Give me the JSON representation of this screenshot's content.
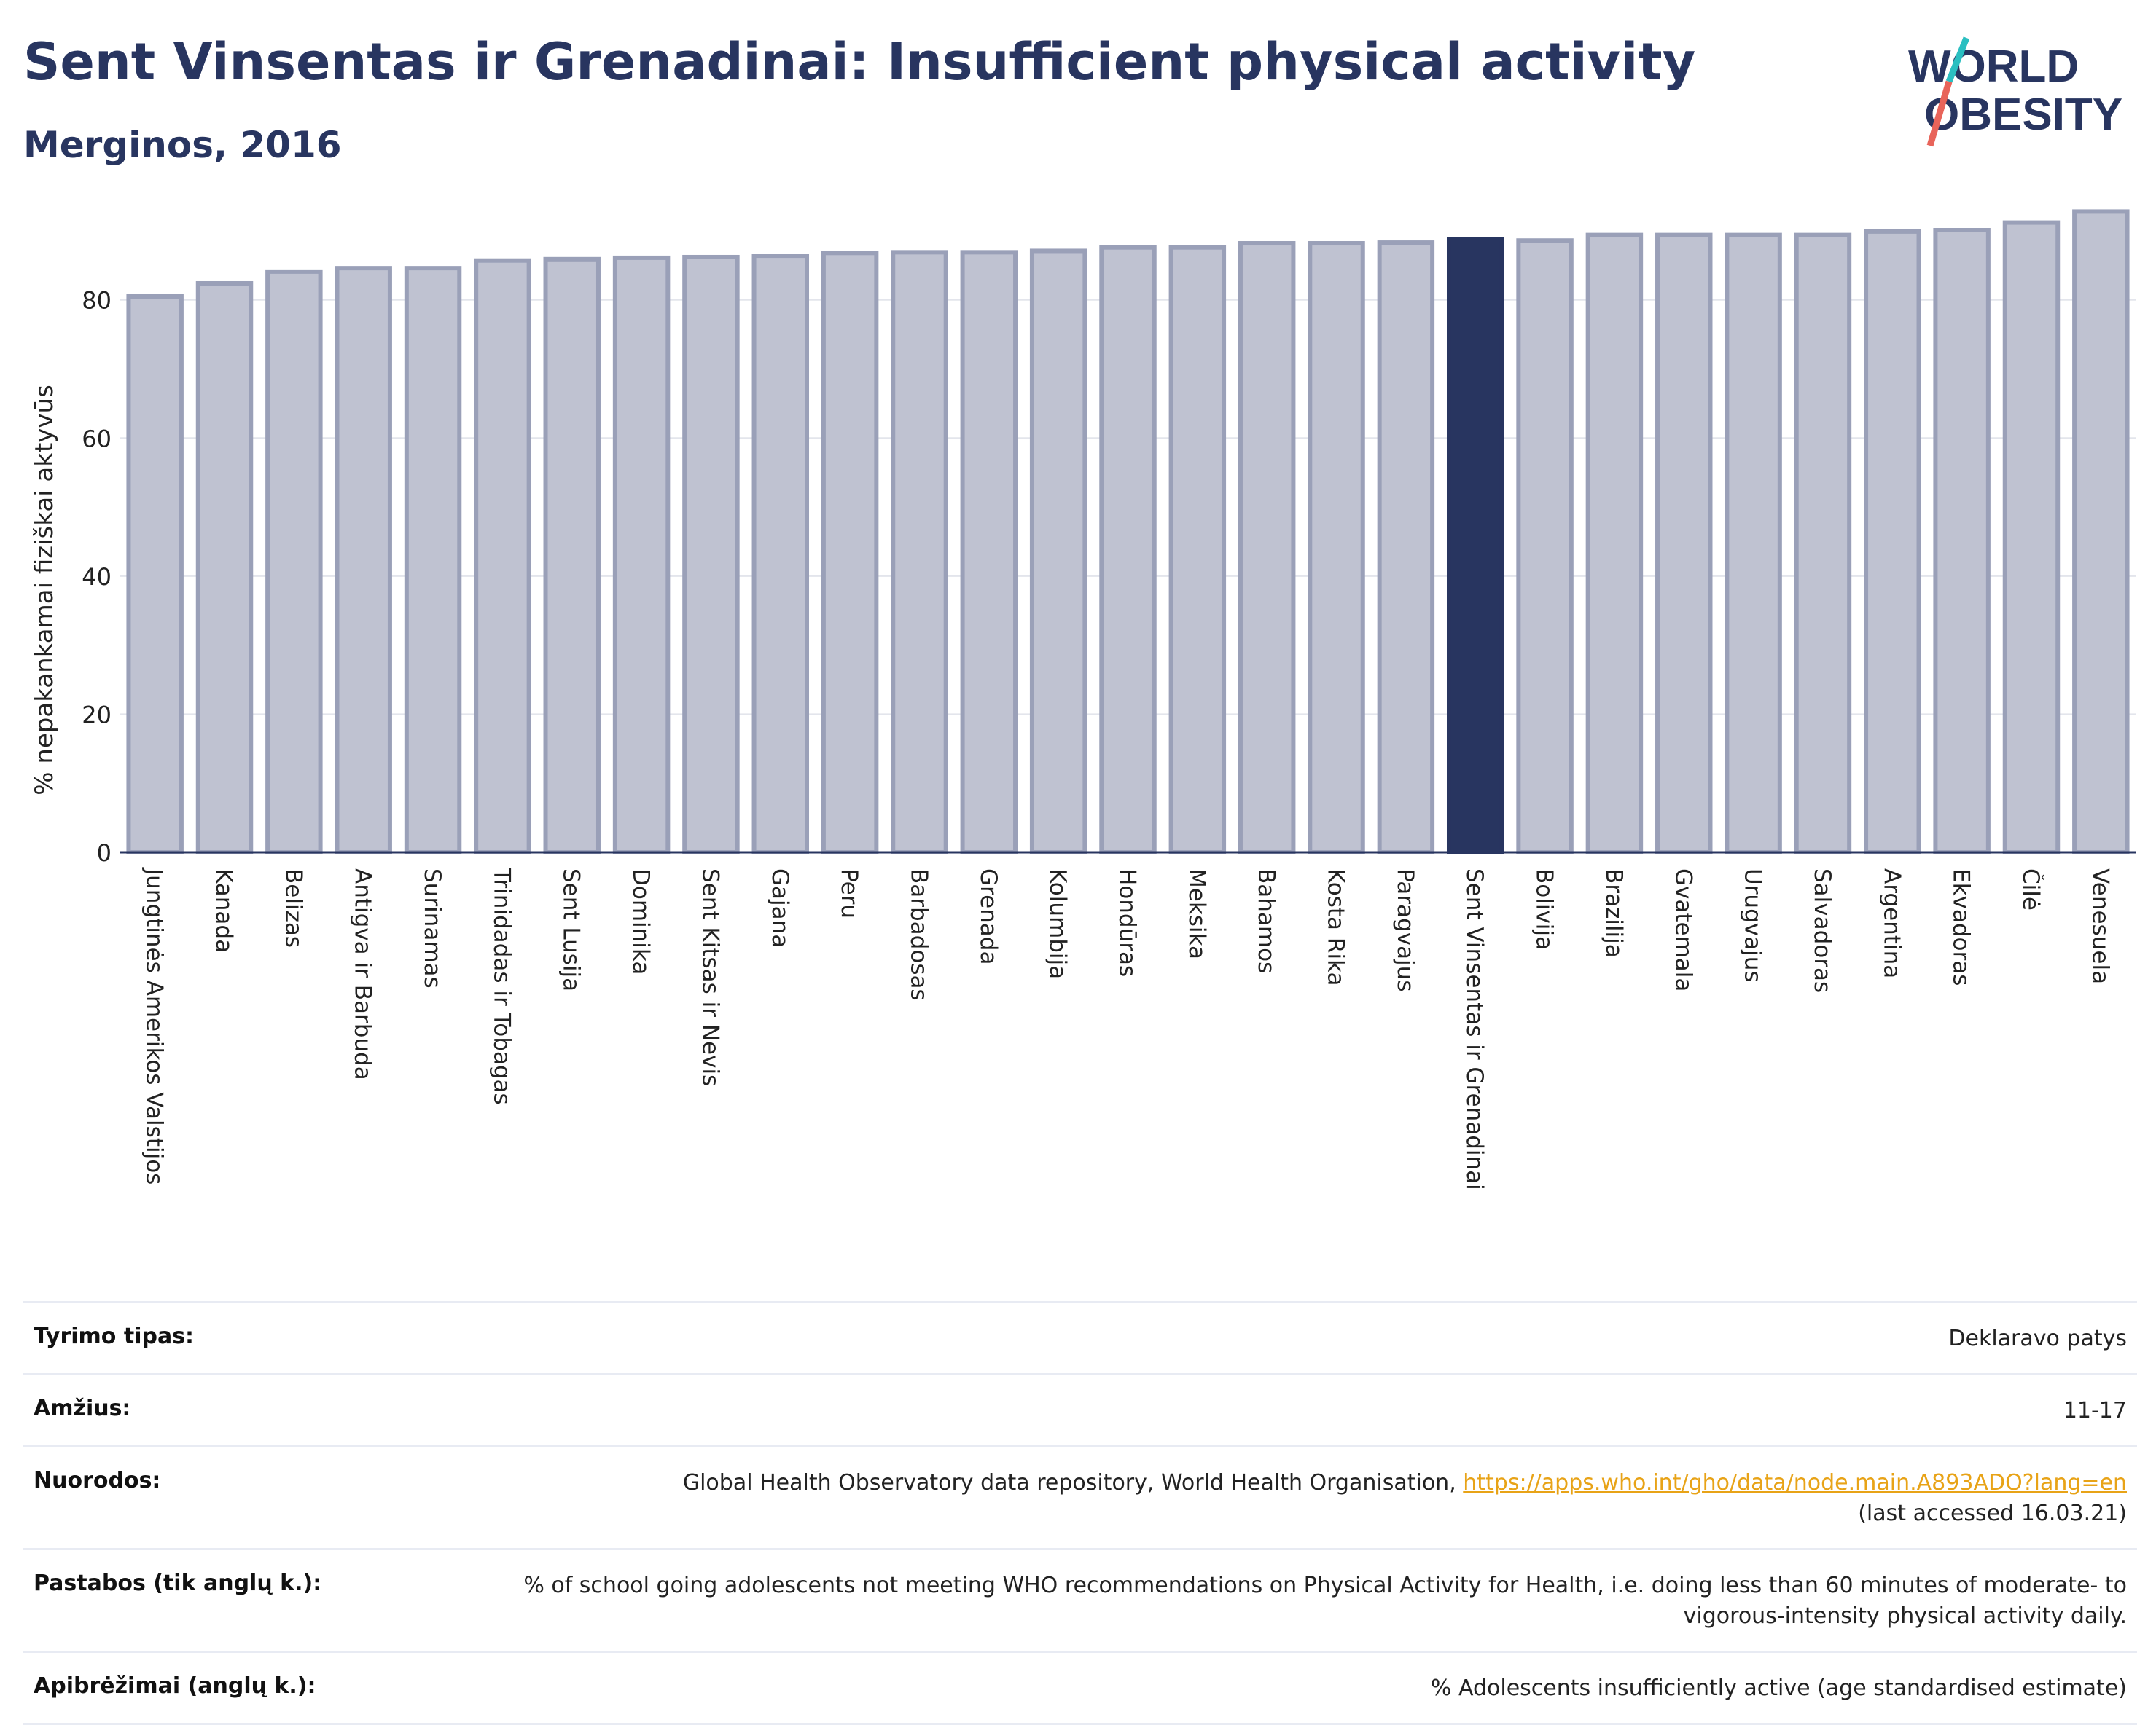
{
  "header": {
    "title": "Sent Vinsentas ir Grenadinai: Insufficient physical activity",
    "subtitle": "Merginos, 2016"
  },
  "logo": {
    "line1": "WORLD",
    "line2": "OBESITY",
    "colors": {
      "text": "#283560",
      "slash_top": "#2bbfc1",
      "slash_bottom": "#e8645a"
    }
  },
  "colors": {
    "bar_default": "#bfc2d1",
    "bar_default_stroke": "#9aa0b8",
    "bar_highlight": "#283560",
    "grid": "#e3e5ec",
    "axis": "#283560"
  },
  "chart_data": {
    "type": "bar",
    "title": "",
    "xlabel": "",
    "ylabel": "% nepakankamai fiziškai aktyvūs",
    "ylim": [
      0,
      92
    ],
    "yticks": [
      0,
      20,
      40,
      60,
      80
    ],
    "grid": true,
    "highlight": "Sent Vinsentas ir Grenadinai",
    "categories": [
      "Jungtinės Amerikos Valstijos",
      "Kanada",
      "Belizas",
      "Antigva ir Barbuda",
      "Surinamas",
      "Trinidadas ir Tobagas",
      "Sent Lusija",
      "Dominika",
      "Sent Kitsas ir Nevis",
      "Gajana",
      "Peru",
      "Barbadosas",
      "Grenada",
      "Kolumbija",
      "Hondūras",
      "Meksika",
      "Bahamos",
      "Kosta Rika",
      "Paragvajus",
      "Sent Vinsentas ir Grenadinai",
      "Bolivija",
      "Brazilija",
      "Gvatemala",
      "Urugvajus",
      "Salvadoras",
      "Argentina",
      "Ekvadoras",
      "Čilė",
      "Venesuela"
    ],
    "values": [
      80.5,
      82.4,
      84.1,
      84.6,
      84.6,
      85.7,
      85.9,
      86.1,
      86.2,
      86.4,
      86.8,
      86.9,
      86.9,
      87.1,
      87.6,
      87.6,
      88.2,
      88.2,
      88.3,
      88.8,
      88.6,
      89.4,
      89.4,
      89.4,
      89.4,
      89.9,
      90.1,
      91.2,
      92.8
    ]
  },
  "meta": {
    "rows": [
      {
        "label": "Tyrimo tipas:",
        "value": "Deklaravo patys"
      },
      {
        "label": "Amžius:",
        "value": "11-17"
      },
      {
        "label": "Nuorodos:",
        "value": "Global Health Observatory data repository, World Health Organisation, ",
        "link": "https://apps.who.int/gho/data/node.main.A893ADO?lang=en",
        "suffix": "(last accessed 16.03.21)"
      },
      {
        "label": "Pastabos (tik anglų k.):",
        "value": "% of school going adolescents not meeting WHO recommendations on Physical Activity for Health, i.e. doing less than 60 minutes of moderate- to vigorous-intensity physical activity daily."
      },
      {
        "label": "Apibrėžimai (anglų k.):",
        "value": "% Adolescents insufficiently active (age standardised estimate)"
      }
    ]
  }
}
